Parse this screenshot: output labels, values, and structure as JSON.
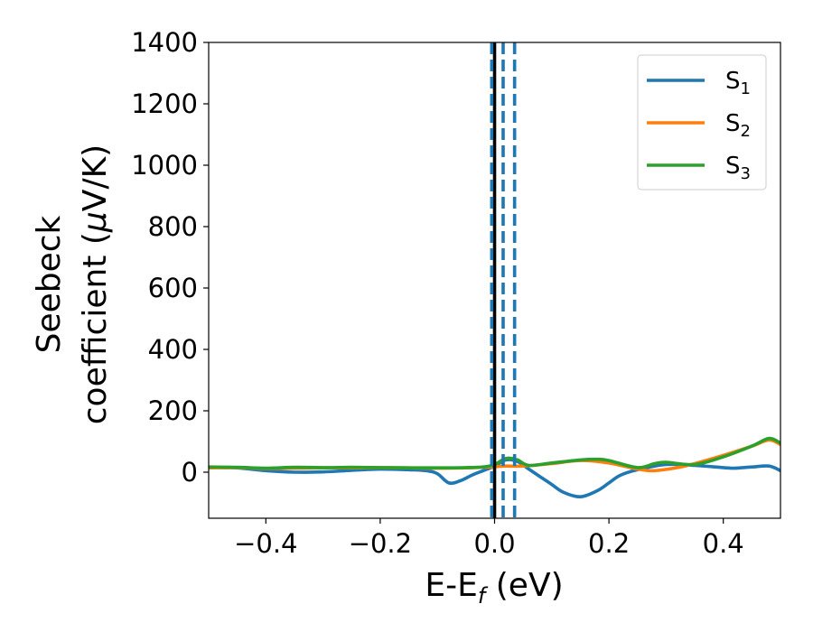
{
  "chart_data": {
    "type": "line",
    "xlabel": {
      "main": "E-E",
      "sub": "f",
      "tail": " (eV)"
    },
    "ylabel": {
      "line1": "Seebeck",
      "line2_pre": "coefficient  (",
      "line2_mu": "μ",
      "line2_post": "V/K)"
    },
    "xlim": [
      -0.5,
      0.5
    ],
    "ylim": [
      -150,
      1400
    ],
    "xticks": [
      -0.4,
      -0.2,
      0.0,
      0.2,
      0.4
    ],
    "xtick_labels": [
      "−0.4",
      "−0.2",
      "0.0",
      "0.2",
      "0.4"
    ],
    "yticks": [
      0,
      200,
      400,
      600,
      800,
      1000,
      1200,
      1400
    ],
    "ytick_labels": [
      "0",
      "200",
      "400",
      "600",
      "800",
      "1000",
      "1200",
      "1400"
    ],
    "grid": false,
    "legend_position": "top-right",
    "series": [
      {
        "name": "S1",
        "label_main": "S",
        "label_sub": "1",
        "color": "#1f77b4",
        "points": [
          [
            -0.5,
            16
          ],
          [
            -0.45,
            14
          ],
          [
            -0.4,
            5
          ],
          [
            -0.35,
            0
          ],
          [
            -0.3,
            1
          ],
          [
            -0.25,
            6
          ],
          [
            -0.2,
            10
          ],
          [
            -0.15,
            8
          ],
          [
            -0.12,
            5
          ],
          [
            -0.1,
            -5
          ],
          [
            -0.08,
            -35
          ],
          [
            -0.06,
            -28
          ],
          [
            -0.04,
            -10
          ],
          [
            -0.02,
            5
          ],
          [
            0.0,
            20
          ],
          [
            0.02,
            40
          ],
          [
            0.04,
            35
          ],
          [
            0.06,
            10
          ],
          [
            0.08,
            -15
          ],
          [
            0.1,
            -40
          ],
          [
            0.12,
            -65
          ],
          [
            0.15,
            -80
          ],
          [
            0.18,
            -60
          ],
          [
            0.2,
            -35
          ],
          [
            0.22,
            -10
          ],
          [
            0.25,
            8
          ],
          [
            0.3,
            25
          ],
          [
            0.35,
            22
          ],
          [
            0.4,
            15
          ],
          [
            0.42,
            13
          ],
          [
            0.45,
            17
          ],
          [
            0.48,
            20
          ],
          [
            0.5,
            5
          ]
        ]
      },
      {
        "name": "S2",
        "label_main": "S",
        "label_sub": "2",
        "color": "#ff7f0e",
        "points": [
          [
            -0.5,
            14
          ],
          [
            -0.45,
            15
          ],
          [
            -0.4,
            12
          ],
          [
            -0.35,
            13
          ],
          [
            -0.3,
            14
          ],
          [
            -0.25,
            14
          ],
          [
            -0.2,
            15
          ],
          [
            -0.15,
            14
          ],
          [
            -0.1,
            13
          ],
          [
            -0.05,
            14
          ],
          [
            0.0,
            18
          ],
          [
            0.02,
            20
          ],
          [
            0.05,
            20
          ],
          [
            0.1,
            28
          ],
          [
            0.15,
            38
          ],
          [
            0.2,
            30
          ],
          [
            0.25,
            10
          ],
          [
            0.28,
            5
          ],
          [
            0.32,
            15
          ],
          [
            0.35,
            28
          ],
          [
            0.4,
            55
          ],
          [
            0.45,
            85
          ],
          [
            0.48,
            105
          ],
          [
            0.5,
            90
          ]
        ]
      },
      {
        "name": "S3",
        "label_main": "S",
        "label_sub": "3",
        "color": "#2ca02c",
        "points": [
          [
            -0.5,
            17
          ],
          [
            -0.45,
            16
          ],
          [
            -0.4,
            13
          ],
          [
            -0.35,
            16
          ],
          [
            -0.3,
            15
          ],
          [
            -0.25,
            16
          ],
          [
            -0.2,
            15
          ],
          [
            -0.15,
            14
          ],
          [
            -0.1,
            14
          ],
          [
            -0.05,
            15
          ],
          [
            -0.02,
            17
          ],
          [
            0.0,
            25
          ],
          [
            0.02,
            45
          ],
          [
            0.04,
            40
          ],
          [
            0.06,
            22
          ],
          [
            0.1,
            30
          ],
          [
            0.15,
            40
          ],
          [
            0.18,
            42
          ],
          [
            0.2,
            38
          ],
          [
            0.25,
            15
          ],
          [
            0.28,
            28
          ],
          [
            0.3,
            32
          ],
          [
            0.35,
            25
          ],
          [
            0.4,
            50
          ],
          [
            0.45,
            85
          ],
          [
            0.48,
            110
          ],
          [
            0.5,
            95
          ]
        ]
      }
    ],
    "vlines": [
      {
        "x": 0.0,
        "color": "#000000",
        "style": "solid"
      },
      {
        "x": -0.005,
        "color": "#1f77b4",
        "style": "dashed"
      },
      {
        "x": 0.015,
        "color": "#1f77b4",
        "style": "dashed"
      },
      {
        "x": 0.035,
        "color": "#1f77b4",
        "style": "dashed"
      }
    ]
  }
}
